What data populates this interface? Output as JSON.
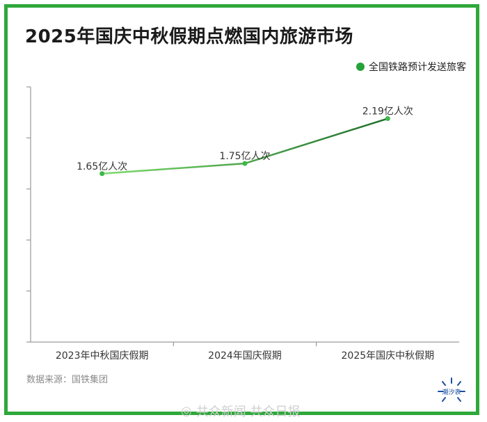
{
  "title": "2025年国庆中秋假期点燃国内旅游市场",
  "source": "数据来源：国铁集团",
  "watermark": "共众新闻 共众日报",
  "logo_text": "潮汐表",
  "colors": {
    "frame": "#2ea83a",
    "line_start": "#7ddb6c",
    "line_end": "#1f6f2c",
    "point": "#3cb84a",
    "legend_dot": "#27a23a"
  },
  "chart_data": {
    "type": "line",
    "title": "2025年国庆中秋假期点燃国内旅游市场",
    "categories": [
      "2023年中秋国庆假期",
      "2024年国庆假期",
      "2025年国庆中秋假期"
    ],
    "series": [
      {
        "name": "全国铁路预计发送旅客",
        "values": [
          1.65,
          1.75,
          2.19
        ],
        "labels": [
          "1.65亿人次",
          "1.75亿人次",
          "2.19亿人次"
        ]
      }
    ],
    "ylim": [
      0,
      2.5
    ],
    "yticks": [
      0,
      0.5,
      1.0,
      1.5,
      2.0,
      2.5
    ],
    "show_y_tick_labels": false,
    "grid": false,
    "legend_position": "top-right"
  }
}
